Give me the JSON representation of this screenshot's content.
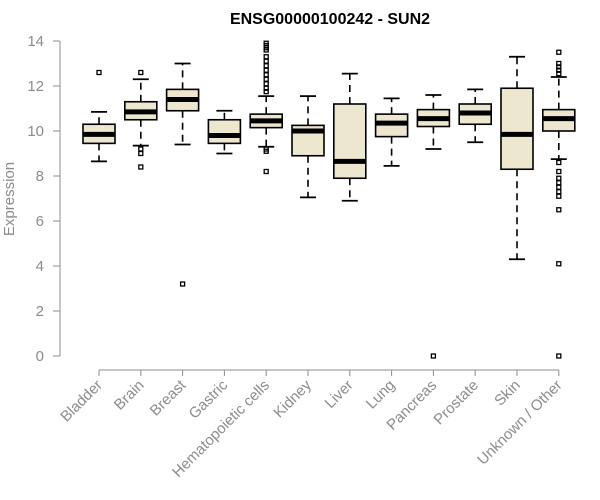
{
  "chart_data": {
    "type": "box",
    "title": "ENSG00000100242 - SUN2",
    "xlabel": "",
    "ylabel": "Expression",
    "ylim": [
      0,
      14
    ],
    "yticks": [
      0,
      2,
      4,
      6,
      8,
      10,
      12,
      14
    ],
    "box_fill": "#ede7cf",
    "box_stroke": "#000000",
    "categories": [
      "Bladder",
      "Brain",
      "Breast",
      "Gastric",
      "Hematopoietic cells",
      "Kidney",
      "Liver",
      "Lung",
      "Pancreas",
      "Prostate",
      "Skin",
      "Unknown / Other"
    ],
    "boxes": [
      {
        "category": "Bladder",
        "whisker_low": 8.65,
        "q1": 9.45,
        "median": 9.85,
        "q3": 10.3,
        "whisker_high": 10.85,
        "outliers": [
          12.6
        ]
      },
      {
        "category": "Brain",
        "whisker_low": 9.35,
        "q1": 10.5,
        "median": 10.85,
        "q3": 11.3,
        "whisker_high": 12.3,
        "outliers": [
          12.6,
          9.2,
          9.0,
          8.4
        ]
      },
      {
        "category": "Breast",
        "whisker_low": 9.4,
        "q1": 10.9,
        "median": 11.4,
        "q3": 11.85,
        "whisker_high": 13.0,
        "outliers": [
          3.2
        ]
      },
      {
        "category": "Gastric",
        "whisker_low": 9.0,
        "q1": 9.45,
        "median": 9.8,
        "q3": 10.5,
        "whisker_high": 10.9,
        "outliers": []
      },
      {
        "category": "Hematopoietic cells",
        "whisker_low": 9.3,
        "q1": 10.15,
        "median": 10.45,
        "q3": 10.75,
        "whisker_high": 11.55,
        "outliers": [
          13.9,
          13.8,
          13.7,
          13.6,
          13.3,
          13.1,
          12.9,
          12.7,
          12.5,
          12.3,
          12.1,
          11.9,
          11.75,
          9.2,
          9.1,
          8.2
        ]
      },
      {
        "category": "Kidney",
        "whisker_low": 7.05,
        "q1": 8.9,
        "median": 10.0,
        "q3": 10.25,
        "whisker_high": 11.55,
        "outliers": []
      },
      {
        "category": "Liver",
        "whisker_low": 6.9,
        "q1": 7.9,
        "median": 8.65,
        "q3": 11.2,
        "whisker_high": 12.55,
        "outliers": []
      },
      {
        "category": "Lung",
        "whisker_low": 8.45,
        "q1": 9.75,
        "median": 10.35,
        "q3": 10.75,
        "whisker_high": 11.45,
        "outliers": []
      },
      {
        "category": "Pancreas",
        "whisker_low": 9.2,
        "q1": 10.2,
        "median": 10.55,
        "q3": 10.95,
        "whisker_high": 11.6,
        "outliers": [
          0.0
        ]
      },
      {
        "category": "Prostate",
        "whisker_low": 9.5,
        "q1": 10.3,
        "median": 10.8,
        "q3": 11.2,
        "whisker_high": 11.85,
        "outliers": []
      },
      {
        "category": "Skin",
        "whisker_low": 4.3,
        "q1": 8.3,
        "median": 9.85,
        "q3": 11.9,
        "whisker_high": 13.3,
        "outliers": []
      },
      {
        "category": "Unknown / Other",
        "whisker_low": 8.75,
        "q1": 10.0,
        "median": 10.55,
        "q3": 10.95,
        "whisker_high": 12.4,
        "outliers": [
          13.5,
          13.0,
          12.85,
          12.7,
          12.55,
          8.6,
          8.2,
          7.9,
          7.7,
          7.5,
          7.3,
          7.1,
          6.5,
          4.1,
          0.0
        ]
      }
    ]
  }
}
